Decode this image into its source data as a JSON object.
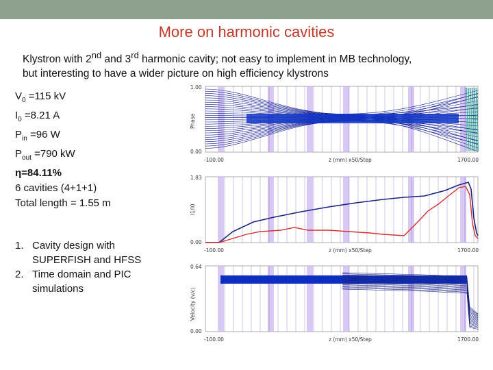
{
  "slide": {
    "title": "More on harmonic cavities",
    "intro": {
      "part1": "Klystron with 2",
      "sup1": "nd",
      "part2": " and 3",
      "sup2": "rd",
      "part3": " harmonic cavity; not easy to implement in MB technology,",
      "line2": "but interesting to have a wider picture on high efficiency klystrons"
    },
    "params": {
      "v0_sym": "V",
      "v0_sub": "0",
      "v0_val": " =115 kV",
      "i0_sym": "I",
      "i0_sub": "0",
      "i0_val": " =8.21 A",
      "pin_sym": "P",
      "pin_sub": "in",
      "pin_val": " =96 W",
      "pout_sym": "P",
      "pout_sub": "out",
      "pout_val": " =790 kW",
      "eta": "η=84.11%",
      "cavities": "6 cavities (4+1+1)",
      "length": "Total length = 1.55 m"
    },
    "steps": [
      {
        "num": "1.",
        "text": "Cavity design with SUPERFISH and HFSS"
      },
      {
        "num": "2.",
        "text": "Time domain and PIC simulations"
      }
    ]
  },
  "plots": {
    "phase": {
      "ymax": "1.00",
      "ymin": "0.00",
      "ylabel": "Phase",
      "xmin": "-100.00",
      "xmax": "1700.00",
      "xlabel": "z (mm) x50/Step"
    },
    "current": {
      "ymax": "1.83",
      "ymin": "0.00",
      "ylabel": "I1/I0",
      "xmin": "-100.00",
      "xmax": "1700.00",
      "xlabel": "z (mm) x50/Step"
    },
    "velocity": {
      "ymax": "0.64",
      "ymin": "0.00",
      "ylabel": "Velocity (v/c)",
      "xmin": "-100.00",
      "xmax": "1700.00",
      "xlabel": "z (mm) x50/Step"
    }
  },
  "colors": {
    "title": "#c0392b",
    "band": "#8ea08e",
    "blue_curve": "#1a237e",
    "red_curve": "#d32f2f",
    "cavity_mark": "#b39ddb"
  }
}
